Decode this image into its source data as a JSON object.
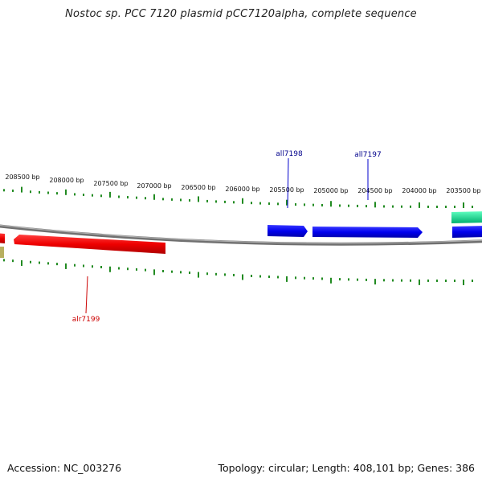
{
  "title": "Nostoc sp. PCC 7120 plasmid pCC7120alpha, complete sequence",
  "footer": {
    "accession": "Accession: NC_003276",
    "summary": "Topology: circular; Length: 408,101 bp; Genes: 386"
  },
  "scale_labels": [
    "208500 bp",
    "208000 bp",
    "207500 bp",
    "207000 bp",
    "206500 bp",
    "206000 bp",
    "205500 bp",
    "205000 bp",
    "204500 bp",
    "204000 bp",
    "203500 bp"
  ],
  "gene_labels": [
    {
      "name": "all7198",
      "color": "#00008b"
    },
    {
      "name": "all7197",
      "color": "#00008b"
    },
    {
      "name": "alr7199",
      "color": "#cc0000"
    }
  ],
  "colors": {
    "backbone": "#808080",
    "tick": "#228b22",
    "reverse_strand": "#0000ee",
    "forward_strand": "#ff0000",
    "teal_feature": "#00e08a",
    "olive_feature": "#b8b060"
  }
}
